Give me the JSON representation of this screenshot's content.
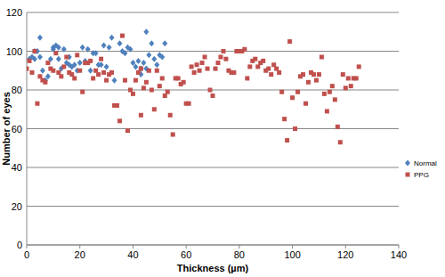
{
  "chart_data": {
    "type": "scatter",
    "x_label": "Thickness (µm)",
    "y_label": "Number of eyes",
    "xlim": [
      0,
      140
    ],
    "xticks": [
      0,
      20,
      40,
      60,
      80,
      100,
      120,
      140
    ],
    "ylim": [
      0,
      120
    ],
    "yticks": [
      0,
      20,
      40,
      60,
      80,
      100,
      120
    ],
    "grid": true,
    "legend": "right",
    "series": [
      {
        "name": "Normal",
        "color": "#4f81bd",
        "marker": "diamond",
        "x": [
          1,
          2,
          3,
          3,
          4,
          5,
          5,
          6,
          7,
          8,
          9,
          10,
          10,
          11,
          12,
          12,
          13,
          14,
          15,
          16,
          16,
          17,
          18,
          19,
          20,
          21,
          22,
          23,
          24,
          25,
          26,
          27,
          28,
          29,
          30,
          31,
          32,
          33,
          35,
          36,
          37,
          38,
          39,
          40,
          41,
          42,
          43,
          43,
          44,
          45,
          45,
          46,
          47,
          48,
          49,
          50,
          51,
          52
        ],
        "values": [
          96,
          97,
          96,
          100,
          100,
          107,
          97,
          90,
          85,
          87,
          96,
          102,
          101,
          103,
          102,
          96,
          91,
          101,
          94,
          97,
          93,
          92,
          93,
          90,
          94,
          102,
          95,
          101,
          90,
          99,
          99,
          93,
          93,
          103,
          92,
          102,
          107,
          85,
          104,
          100,
          99,
          102,
          101,
          94,
          92,
          95,
          88,
          91,
          94,
          110,
          91,
          98,
          104,
          96,
          93,
          98,
          97,
          104
        ]
      },
      {
        "name": "PPG",
        "color": "#c0504d",
        "marker": "square",
        "x": [
          0,
          1,
          2,
          3,
          4,
          5,
          6,
          7,
          8,
          9,
          10,
          11,
          12,
          13,
          14,
          15,
          16,
          17,
          18,
          19,
          20,
          21,
          22,
          23,
          24,
          25,
          26,
          27,
          28,
          29,
          30,
          31,
          32,
          33,
          34,
          35,
          36,
          37,
          38,
          39,
          40,
          41,
          42,
          43,
          43,
          44,
          45,
          46,
          47,
          48,
          49,
          50,
          51,
          52,
          53,
          54,
          55,
          56,
          57,
          58,
          59,
          60,
          61,
          62,
          63,
          64,
          65,
          66,
          67,
          68,
          69,
          70,
          71,
          72,
          73,
          74,
          75,
          76,
          77,
          78,
          79,
          80,
          81,
          82,
          83,
          84,
          85,
          86,
          87,
          88,
          89,
          90,
          91,
          92,
          93,
          94,
          95,
          96,
          97,
          98,
          99,
          100,
          101,
          102,
          103,
          104,
          105,
          106,
          107,
          108,
          109,
          110,
          111,
          112,
          113,
          114,
          115,
          116,
          117,
          118,
          119,
          120,
          121,
          122,
          123,
          124,
          125
        ],
        "values": [
          91,
          95,
          89,
          100,
          73,
          87,
          85,
          84,
          94,
          91,
          90,
          99,
          89,
          87,
          92,
          97,
          89,
          88,
          86,
          98,
          90,
          79,
          94,
          94,
          95,
          86,
          90,
          88,
          96,
          89,
          85,
          88,
          89,
          72,
          72,
          64,
          108,
          85,
          59,
          80,
          78,
          85,
          89,
          91,
          67,
          81,
          84,
          90,
          80,
          70,
          90,
          82,
          86,
          77,
          79,
          67,
          57,
          86,
          86,
          83,
          84,
          73,
          73,
          92,
          89,
          93,
          90,
          94,
          97,
          91,
          80,
          77,
          91,
          94,
          97,
          100,
          96,
          90,
          89,
          89,
          100,
          100,
          100,
          101,
          86,
          92,
          95,
          96,
          92,
          94,
          95,
          90,
          91,
          88,
          93,
          91,
          89,
          79,
          65,
          54,
          105,
          76,
          60,
          79,
          87,
          88,
          73,
          84,
          89,
          88,
          85,
          88,
          97,
          78,
          69,
          79,
          82,
          75,
          61,
          53,
          88,
          81,
          86,
          82,
          86,
          86,
          92
        ]
      }
    ]
  }
}
